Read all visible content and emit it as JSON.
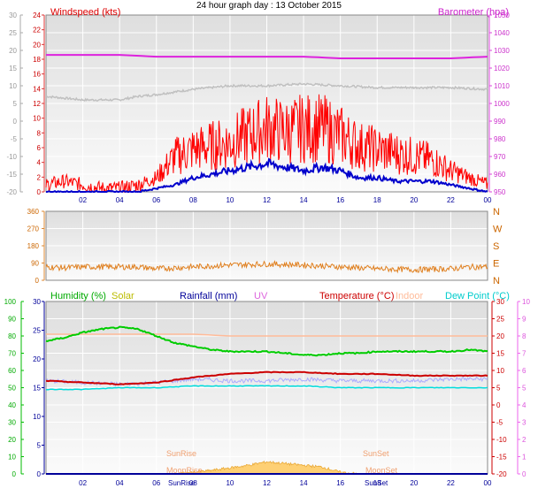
{
  "title": "24 hour graph day : 13 October 2015",
  "x_ticks": [
    "02",
    "04",
    "06",
    "08",
    "10",
    "12",
    "14",
    "16",
    "18",
    "20",
    "22",
    "00"
  ],
  "colors": {
    "windspeed": "#ff0000",
    "gust_avg": "#0000cc",
    "barometer": "#dd22dd",
    "grey_trace": "#c0c0c0",
    "winddir": "#e08020",
    "humidity": "#00cc00",
    "solar": "#cccc00",
    "rainfall": "#000099",
    "uv": "#dd66dd",
    "temperature": "#cc0000",
    "indoor": "#ffbb99",
    "dewpoint": "#00dddd",
    "indoor_trace": "#aaaaff",
    "solar_fill": "#ffcc66",
    "plot_bg_top": "#e6e6e6",
    "plot_bg_bottom": "#f8f8f8"
  },
  "panels": {
    "wind": {
      "label_left": "Windspeed (kts)",
      "label_right": "Barometer (hpa)",
      "outer_left_ticks": [
        "30",
        "25",
        "20",
        "15",
        "10",
        "5",
        "0",
        "-5",
        "-10",
        "-15",
        "-20"
      ],
      "left_ticks": [
        "24",
        "22",
        "20",
        "18",
        "16",
        "14",
        "12",
        "10",
        "8",
        "6",
        "4",
        "2",
        "0"
      ],
      "right_ticks": [
        "1050",
        "1040",
        "1030",
        "1020",
        "1010",
        "1000",
        "990",
        "980",
        "970",
        "960",
        "950"
      ]
    },
    "direction": {
      "left_ticks": [
        "360",
        "270",
        "180",
        "90",
        "0"
      ],
      "right_ticks": [
        "N",
        "W",
        "S",
        "E",
        "N"
      ]
    },
    "lower": {
      "labels": {
        "humidity": "Humidity (%)",
        "solar": "Solar",
        "rainfall": "Rainfall (mm)",
        "uv": "UV",
        "temperature": "Temperature (°C)",
        "indoor": "Indoor",
        "dewpoint": "Dew Point (°C)"
      },
      "hum_ticks": [
        "100",
        "90",
        "80",
        "70",
        "60",
        "50",
        "40",
        "30",
        "20",
        "10",
        "0"
      ],
      "rain_ticks": [
        "30",
        "25",
        "20",
        "15",
        "10",
        "5",
        "0"
      ],
      "right_ticks": [
        "30",
        "25",
        "20",
        "15",
        "10",
        "5",
        "0",
        "-5",
        "-10",
        "-15",
        "-20"
      ],
      "uv_ticks": [
        "10",
        "9",
        "8",
        "7",
        "6",
        "5",
        "4",
        "3",
        "2",
        "1",
        "0"
      ],
      "annotations": {
        "sunrise": "SunRise",
        "sunset": "SunSet",
        "moonrise": "MoonRise",
        "moonset": "MoonSet",
        "sunrise_axis": "SunRise",
        "sunset_axis": "SunSet"
      }
    }
  },
  "chart_data": [
    {
      "type": "line",
      "title": "24 hour graph day : 13 October 2015",
      "x_unit": "hour",
      "xlim": [
        0,
        24
      ],
      "series": [
        {
          "name": "Windspeed (kts)",
          "axis": "left",
          "ylim": [
            0,
            25
          ],
          "x": [
            0,
            1,
            2,
            3,
            4,
            5,
            6,
            7,
            8,
            9,
            10,
            11,
            12,
            13,
            14,
            15,
            16,
            17,
            18,
            19,
            20,
            21,
            22,
            23,
            24
          ],
          "y": [
            1,
            1.5,
            1,
            0.5,
            0.5,
            1,
            2,
            5,
            6,
            6.5,
            7,
            8,
            9,
            8.5,
            9,
            9,
            8,
            6.5,
            6,
            5.5,
            5,
            4.5,
            3,
            2,
            1
          ]
        },
        {
          "name": "Barometer (hpa)",
          "axis": "right",
          "ylim": [
            950,
            1052
          ],
          "x": [
            0,
            2,
            4,
            6,
            8,
            10,
            12,
            14,
            16,
            18,
            20,
            22,
            24
          ],
          "y": [
            1029,
            1029,
            1029,
            1028,
            1028,
            1028,
            1028,
            1028,
            1027,
            1027,
            1027,
            1027,
            1028
          ]
        },
        {
          "name": "grey trace",
          "axis": "outer_left",
          "ylim": [
            -20,
            30
          ],
          "x": [
            0,
            2,
            4,
            5,
            6,
            8,
            10,
            12,
            14,
            16,
            18,
            20,
            22,
            24
          ],
          "y": [
            7,
            6,
            6,
            7,
            7.5,
            9,
            10,
            10,
            10.5,
            10,
            9.5,
            9.5,
            9.5,
            9
          ]
        },
        {
          "name": "dark blue trace",
          "axis": "left",
          "ylim": [
            0,
            25
          ],
          "x": [
            0,
            1,
            2,
            3,
            4,
            5,
            6,
            7,
            8,
            9,
            10,
            11,
            12,
            13,
            14,
            15,
            16,
            17,
            18,
            19,
            20,
            21,
            22,
            23,
            24
          ],
          "y": [
            0,
            0,
            0,
            0,
            0,
            0,
            0.5,
            1,
            2,
            2.5,
            3,
            3.5,
            4,
            3.5,
            3,
            3.5,
            3,
            2,
            2,
            1.5,
            1.5,
            1.5,
            1,
            0.5,
            0
          ]
        }
      ]
    },
    {
      "type": "line",
      "xlim": [
        0,
        24
      ],
      "series": [
        {
          "name": "Wind direction",
          "ylim": [
            0,
            360
          ],
          "x": [
            0,
            1,
            2,
            3,
            4,
            5,
            6,
            8,
            10,
            12,
            14,
            16,
            18,
            20,
            22,
            23,
            24
          ],
          "y": [
            70,
            65,
            70,
            70,
            70,
            70,
            60,
            70,
            80,
            85,
            80,
            70,
            60,
            55,
            60,
            70,
            70
          ]
        }
      ]
    },
    {
      "type": "line",
      "xlim": [
        0,
        24
      ],
      "series": [
        {
          "name": "Humidity (%)",
          "axis": "humidity",
          "ylim": [
            0,
            100
          ],
          "x": [
            0,
            1,
            2,
            3,
            4,
            5,
            6,
            7,
            8,
            9,
            10,
            11,
            12,
            13,
            14,
            15,
            16,
            17,
            18,
            19,
            20,
            21,
            22,
            23,
            24
          ],
          "y": [
            77,
            79,
            82,
            84,
            85,
            84,
            80,
            76,
            74,
            72,
            71,
            71,
            71,
            70,
            69,
            69,
            70,
            70,
            71,
            71,
            71,
            71,
            71,
            72,
            71
          ]
        },
        {
          "name": "Temperature (°C)",
          "axis": "temp",
          "ylim": [
            -20,
            30
          ],
          "x": [
            0,
            2,
            4,
            6,
            8,
            10,
            12,
            14,
            16,
            18,
            20,
            22,
            24
          ],
          "y": [
            7,
            6.5,
            6,
            6.5,
            8,
            9,
            9.5,
            9.5,
            9,
            9,
            8.5,
            8.5,
            8.5
          ]
        },
        {
          "name": "Indoor",
          "axis": "temp",
          "ylim": [
            -20,
            30
          ],
          "x": [
            0,
            2,
            4,
            6,
            8,
            10,
            12,
            14,
            16,
            18,
            20,
            22,
            24
          ],
          "y": [
            20.5,
            20.5,
            20.5,
            20.5,
            20.5,
            20,
            20,
            20,
            20,
            20,
            20,
            20,
            20
          ]
        },
        {
          "name": "Dew Point (°C)",
          "axis": "temp",
          "ylim": [
            -20,
            30
          ],
          "x": [
            0,
            2,
            4,
            6,
            8,
            10,
            12,
            14,
            16,
            18,
            20,
            22,
            24
          ],
          "y": [
            4.5,
            4.5,
            5,
            5,
            5.5,
            5.5,
            5.5,
            5.5,
            5,
            5,
            5,
            5,
            5
          ]
        },
        {
          "name": "indoor trace",
          "axis": "temp",
          "ylim": [
            -20,
            30
          ],
          "x": [
            0,
            2,
            4,
            6,
            8,
            10,
            12,
            14,
            16,
            18,
            20,
            22,
            24
          ],
          "y": [
            7,
            6.5,
            6,
            6.5,
            7.5,
            7,
            7,
            7.5,
            7,
            7,
            7,
            7.5,
            7.5
          ]
        },
        {
          "name": "Solar",
          "axis": "humidity",
          "ylim": [
            0,
            100
          ],
          "x": [
            7,
            8,
            9,
            10,
            11,
            12,
            13,
            14,
            15,
            16,
            17
          ],
          "y": [
            0,
            1,
            2,
            3.5,
            5,
            7,
            6,
            5,
            4,
            1,
            0
          ]
        },
        {
          "name": "Rainfall (mm)",
          "axis": "rain",
          "ylim": [
            0,
            30
          ],
          "x": [
            0,
            24
          ],
          "y": [
            0,
            0
          ]
        }
      ]
    }
  ]
}
